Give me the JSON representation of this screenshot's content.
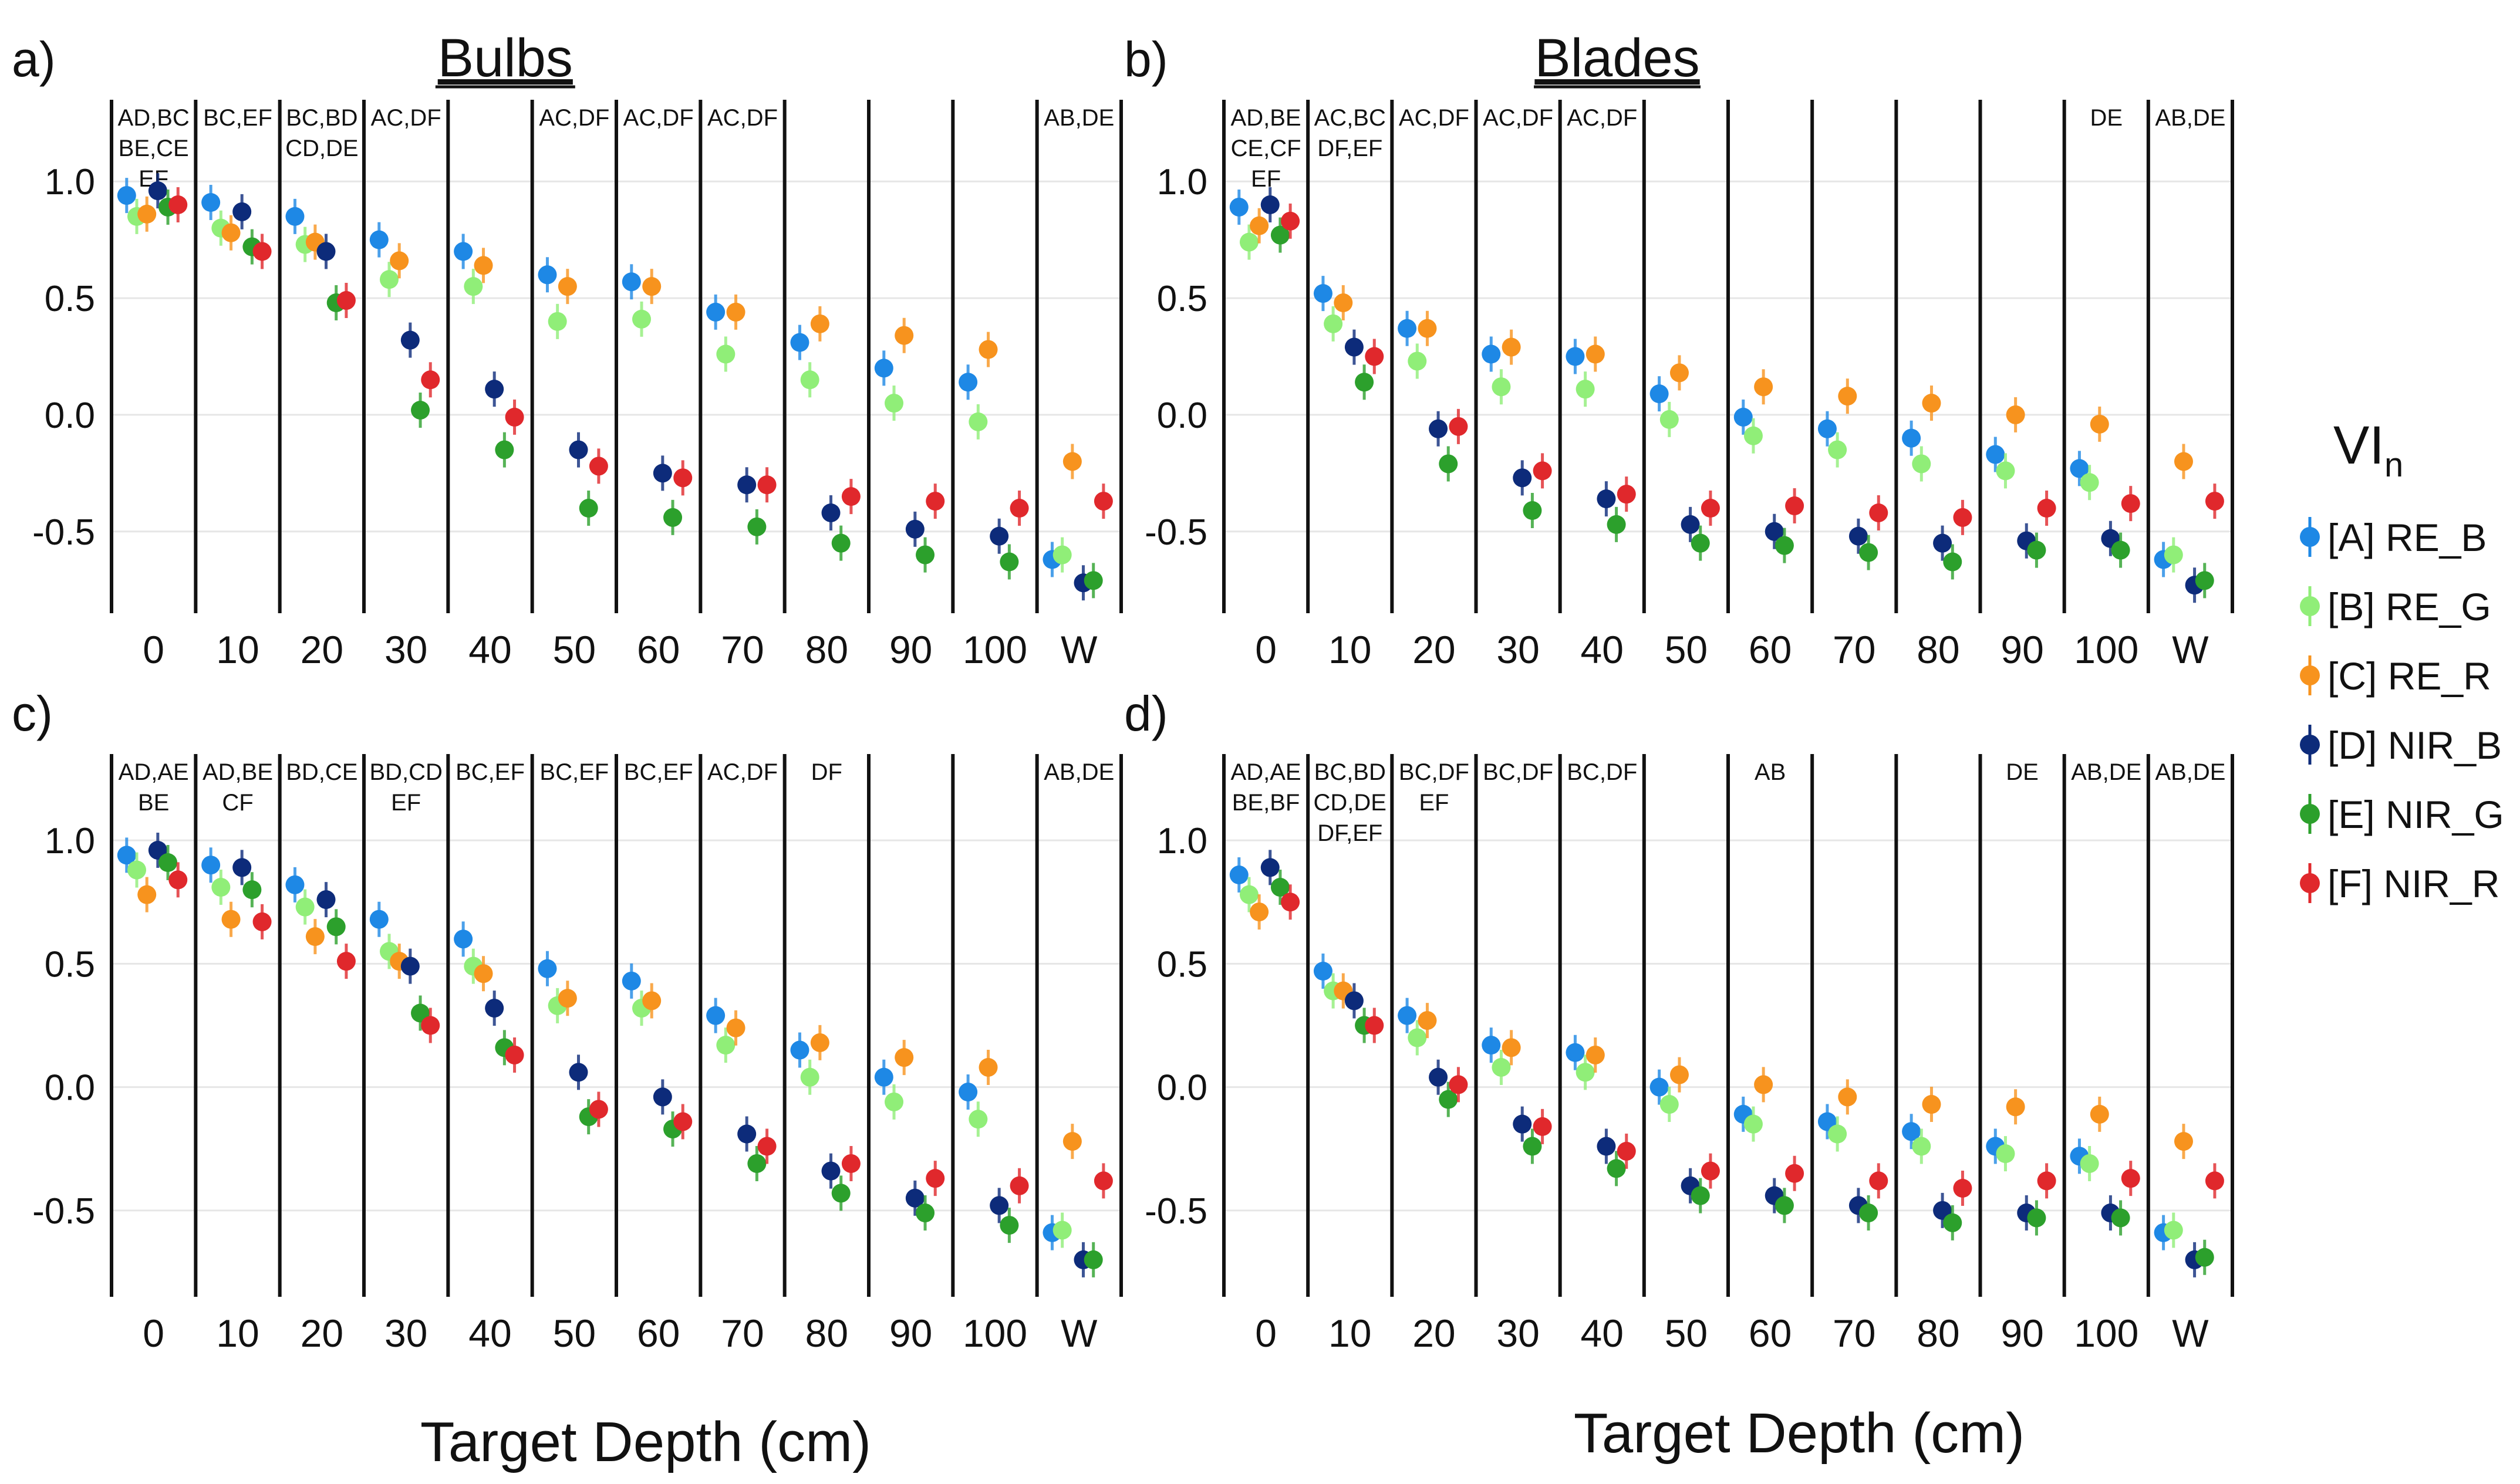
{
  "figure": {
    "xlabel": "Target Depth (cm)",
    "legend_title": "VI",
    "legend_title_sub": "n"
  },
  "series_meta": [
    {
      "key": "A",
      "name": "[A] RE_B",
      "color": "#1e88e5"
    },
    {
      "key": "B",
      "name": "[B] RE_G",
      "color": "#90ee78"
    },
    {
      "key": "C",
      "name": "[C] RE_R",
      "color": "#f7931e"
    },
    {
      "key": "D",
      "name": "[D] NIR_B",
      "color": "#0d2b7a"
    },
    {
      "key": "E",
      "name": "[E] NIR_G",
      "color": "#2ca02c"
    },
    {
      "key": "F",
      "name": "[F] NIR_R",
      "color": "#e0282c"
    }
  ],
  "chart_data": [
    {
      "id": "a",
      "type": "scatter",
      "panel_label": "a)",
      "title": "Bulbs",
      "categories": [
        "0",
        "10",
        "20",
        "30",
        "40",
        "50",
        "60",
        "70",
        "80",
        "90",
        "100",
        "W"
      ],
      "ylim": [
        -0.85,
        1.35
      ],
      "yticks": [
        1.0,
        0.5,
        0.0,
        -0.5
      ],
      "ytick_labels": [
        "1.0",
        "0.5",
        "0.0",
        "-0.5"
      ],
      "annotations": [
        [
          "AD,BC",
          "BE,CE",
          "EF"
        ],
        [
          "BC,EF"
        ],
        [
          "BC,BD",
          "CD,DE"
        ],
        [
          "AC,DF"
        ],
        [],
        [
          "AC,DF"
        ],
        [
          "AC,DF"
        ],
        [
          "AC,DF"
        ],
        [],
        [],
        [],
        [
          "AB,DE"
        ]
      ],
      "series": [
        {
          "name": "RE_B",
          "values": [
            0.94,
            0.91,
            0.85,
            0.75,
            0.7,
            0.6,
            0.57,
            0.44,
            0.31,
            0.2,
            0.14,
            -0.62
          ]
        },
        {
          "name": "RE_G",
          "values": [
            0.85,
            0.8,
            0.73,
            0.58,
            0.55,
            0.4,
            0.41,
            0.26,
            0.15,
            0.05,
            -0.03,
            -0.6
          ]
        },
        {
          "name": "RE_R",
          "values": [
            0.86,
            0.78,
            0.74,
            0.66,
            0.64,
            0.55,
            0.55,
            0.44,
            0.39,
            0.34,
            0.28,
            -0.2
          ]
        },
        {
          "name": "NIR_B",
          "values": [
            0.96,
            0.87,
            0.7,
            0.32,
            0.11,
            -0.15,
            -0.25,
            -0.3,
            -0.42,
            -0.49,
            -0.52,
            -0.72
          ]
        },
        {
          "name": "NIR_G",
          "values": [
            0.89,
            0.72,
            0.48,
            0.02,
            -0.15,
            -0.4,
            -0.44,
            -0.48,
            -0.55,
            -0.6,
            -0.63,
            -0.71
          ]
        },
        {
          "name": "NIR_R",
          "values": [
            0.9,
            0.7,
            0.49,
            0.15,
            -0.01,
            -0.22,
            -0.27,
            -0.3,
            -0.35,
            -0.37,
            -0.4,
            -0.37
          ]
        }
      ]
    },
    {
      "id": "b",
      "type": "scatter",
      "panel_label": "b)",
      "title": "Blades",
      "categories": [
        "0",
        "10",
        "20",
        "30",
        "40",
        "50",
        "60",
        "70",
        "80",
        "90",
        "100",
        "W"
      ],
      "ylim": [
        -0.85,
        1.35
      ],
      "yticks": [
        1.0,
        0.5,
        0.0,
        -0.5
      ],
      "ytick_labels": [
        "1.0",
        "0.5",
        "0.0",
        "-0.5"
      ],
      "annotations": [
        [
          "AD,BE",
          "CE,CF",
          "EF"
        ],
        [
          "AC,BC",
          "DF,EF"
        ],
        [
          "AC,DF"
        ],
        [
          "AC,DF"
        ],
        [
          "AC,DF"
        ],
        [],
        [],
        [],
        [],
        [],
        [
          "DE"
        ],
        [
          "AB,DE"
        ]
      ],
      "series": [
        {
          "name": "RE_B",
          "values": [
            0.89,
            0.52,
            0.37,
            0.26,
            0.25,
            0.09,
            -0.01,
            -0.06,
            -0.1,
            -0.17,
            -0.23,
            -0.62
          ]
        },
        {
          "name": "RE_G",
          "values": [
            0.74,
            0.39,
            0.23,
            0.12,
            0.11,
            -0.02,
            -0.09,
            -0.15,
            -0.21,
            -0.24,
            -0.29,
            -0.6
          ]
        },
        {
          "name": "RE_R",
          "values": [
            0.81,
            0.48,
            0.37,
            0.29,
            0.26,
            0.18,
            0.12,
            0.08,
            0.05,
            0.0,
            -0.04,
            -0.2
          ]
        },
        {
          "name": "NIR_B",
          "values": [
            0.9,
            0.29,
            -0.06,
            -0.27,
            -0.36,
            -0.47,
            -0.5,
            -0.52,
            -0.55,
            -0.54,
            -0.53,
            -0.73
          ]
        },
        {
          "name": "NIR_G",
          "values": [
            0.77,
            0.14,
            -0.21,
            -0.41,
            -0.47,
            -0.55,
            -0.56,
            -0.59,
            -0.63,
            -0.58,
            -0.58,
            -0.71
          ]
        },
        {
          "name": "NIR_R",
          "values": [
            0.83,
            0.25,
            -0.05,
            -0.24,
            -0.34,
            -0.4,
            -0.39,
            -0.42,
            -0.44,
            -0.4,
            -0.38,
            -0.37
          ]
        }
      ]
    },
    {
      "id": "c",
      "type": "scatter",
      "panel_label": "c)",
      "title": "",
      "categories": [
        "0",
        "10",
        "20",
        "30",
        "40",
        "50",
        "60",
        "70",
        "80",
        "90",
        "100",
        "W"
      ],
      "ylim": [
        -0.85,
        1.35
      ],
      "yticks": [
        1.0,
        0.5,
        0.0,
        -0.5
      ],
      "ytick_labels": [
        "1.0",
        "0.5",
        "0.0",
        "-0.5"
      ],
      "annotations": [
        [
          "AD,AE",
          "BE"
        ],
        [
          "AD,BE",
          "CF"
        ],
        [
          "BD,CE"
        ],
        [
          "BD,CD",
          "EF"
        ],
        [
          "BC,EF"
        ],
        [
          "BC,EF"
        ],
        [
          "BC,EF"
        ],
        [
          "AC,DF"
        ],
        [
          "DF"
        ],
        [],
        [],
        [
          "AB,DE"
        ]
      ],
      "series": [
        {
          "name": "RE_B",
          "values": [
            0.94,
            0.9,
            0.82,
            0.68,
            0.6,
            0.48,
            0.43,
            0.29,
            0.15,
            0.04,
            -0.02,
            -0.59
          ]
        },
        {
          "name": "RE_G",
          "values": [
            0.88,
            0.81,
            0.73,
            0.55,
            0.49,
            0.33,
            0.32,
            0.17,
            0.04,
            -0.06,
            -0.13,
            -0.58
          ]
        },
        {
          "name": "RE_R",
          "values": [
            0.78,
            0.68,
            0.61,
            0.51,
            0.46,
            0.36,
            0.35,
            0.24,
            0.18,
            0.12,
            0.08,
            -0.22
          ]
        },
        {
          "name": "NIR_B",
          "values": [
            0.96,
            0.89,
            0.76,
            0.49,
            0.32,
            0.06,
            -0.04,
            -0.19,
            -0.34,
            -0.45,
            -0.48,
            -0.7
          ]
        },
        {
          "name": "NIR_G",
          "values": [
            0.91,
            0.8,
            0.65,
            0.3,
            0.16,
            -0.12,
            -0.17,
            -0.31,
            -0.43,
            -0.51,
            -0.56,
            -0.7
          ]
        },
        {
          "name": "NIR_R",
          "values": [
            0.84,
            0.67,
            0.51,
            0.25,
            0.13,
            -0.09,
            -0.14,
            -0.24,
            -0.31,
            -0.37,
            -0.4,
            -0.38
          ]
        }
      ]
    },
    {
      "id": "d",
      "type": "scatter",
      "panel_label": "d)",
      "title": "",
      "categories": [
        "0",
        "10",
        "20",
        "30",
        "40",
        "50",
        "60",
        "70",
        "80",
        "90",
        "100",
        "W"
      ],
      "ylim": [
        -0.85,
        1.35
      ],
      "yticks": [
        1.0,
        0.5,
        0.0,
        -0.5
      ],
      "ytick_labels": [
        "1.0",
        "0.5",
        "0.0",
        "-0.5"
      ],
      "annotations": [
        [
          "AD,AE",
          "BE,BF"
        ],
        [
          "BC,BD",
          "CD,DE",
          "DF,EF"
        ],
        [
          "BC,DF",
          "EF"
        ],
        [
          "BC,DF"
        ],
        [
          "BC,DF"
        ],
        [],
        [
          "AB"
        ],
        [],
        [],
        [
          "DE"
        ],
        [
          "AB,DE"
        ],
        [
          "AB,DE"
        ]
      ],
      "series": [
        {
          "name": "RE_B",
          "values": [
            0.86,
            0.47,
            0.29,
            0.17,
            0.14,
            0.0,
            -0.11,
            -0.14,
            -0.18,
            -0.24,
            -0.28,
            -0.59
          ]
        },
        {
          "name": "RE_G",
          "values": [
            0.78,
            0.39,
            0.2,
            0.08,
            0.06,
            -0.07,
            -0.15,
            -0.19,
            -0.24,
            -0.27,
            -0.31,
            -0.58
          ]
        },
        {
          "name": "RE_R",
          "values": [
            0.71,
            0.39,
            0.27,
            0.16,
            0.13,
            0.05,
            0.01,
            -0.04,
            -0.07,
            -0.08,
            -0.11,
            -0.22
          ]
        },
        {
          "name": "NIR_B",
          "values": [
            0.89,
            0.35,
            0.04,
            -0.15,
            -0.24,
            -0.4,
            -0.44,
            -0.48,
            -0.5,
            -0.51,
            -0.51,
            -0.7
          ]
        },
        {
          "name": "NIR_G",
          "values": [
            0.81,
            0.25,
            -0.05,
            -0.24,
            -0.33,
            -0.44,
            -0.48,
            -0.51,
            -0.55,
            -0.53,
            -0.53,
            -0.69
          ]
        },
        {
          "name": "NIR_R",
          "values": [
            0.75,
            0.25,
            0.01,
            -0.16,
            -0.26,
            -0.34,
            -0.35,
            -0.38,
            -0.41,
            -0.38,
            -0.37,
            -0.38
          ]
        }
      ]
    }
  ]
}
